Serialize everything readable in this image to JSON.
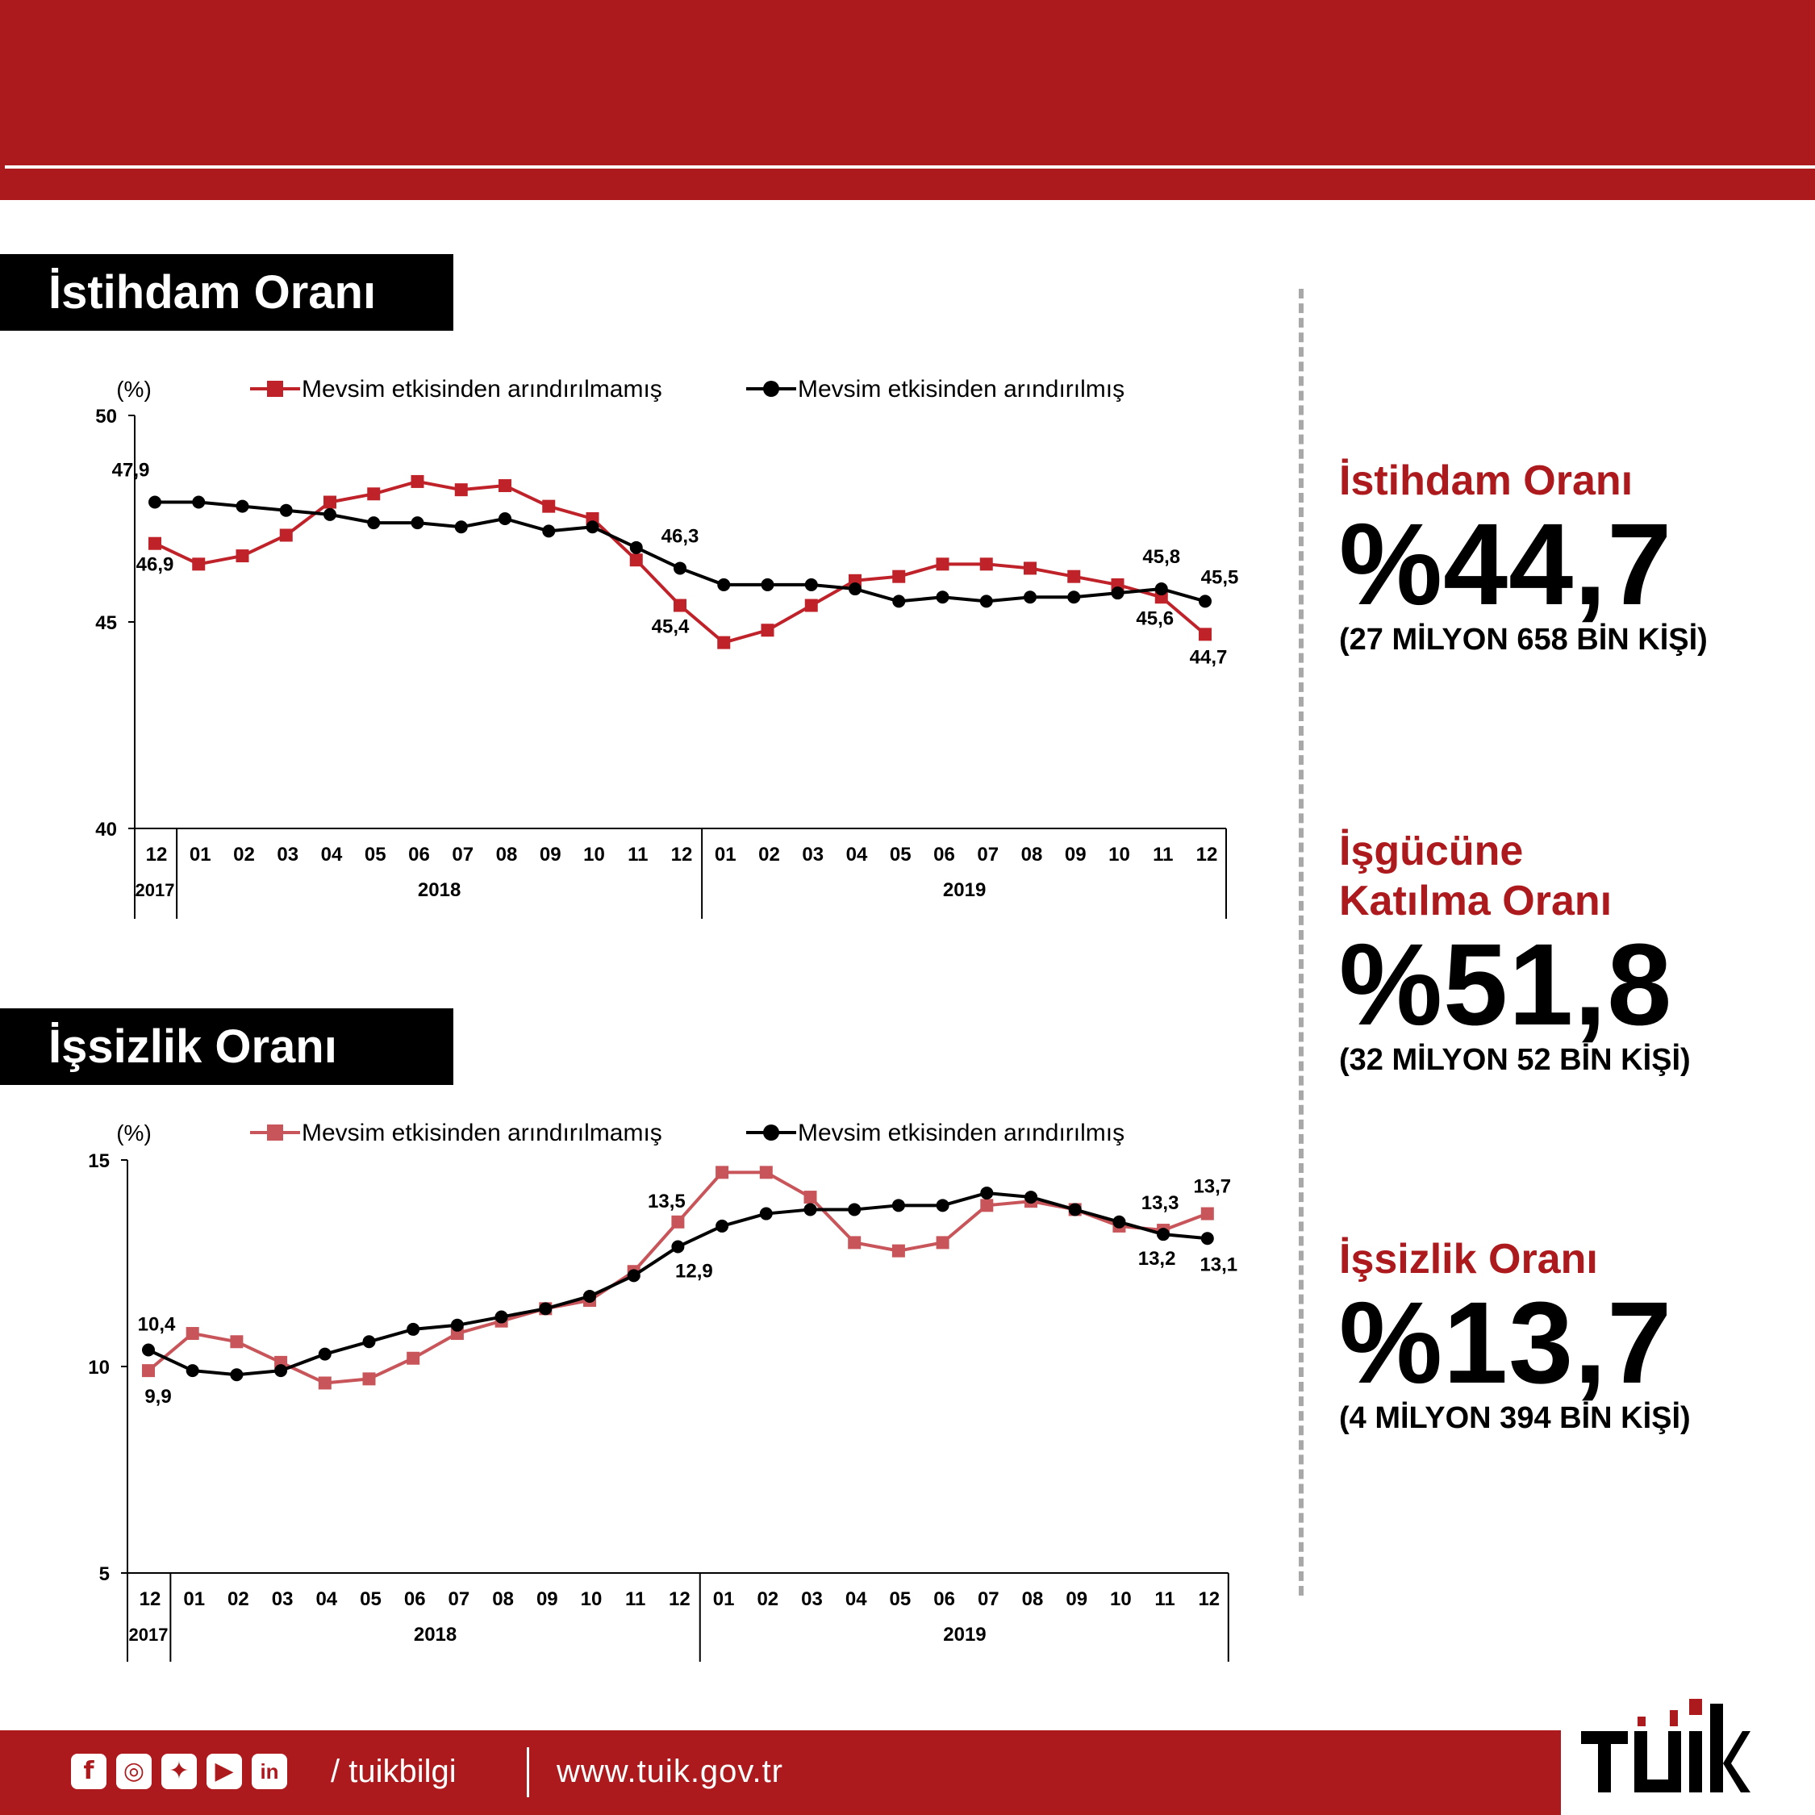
{
  "sections": {
    "employment_label": "İstihdam Oranı",
    "unemployment_label": "İşsizlik Oranı"
  },
  "stats": [
    {
      "title_lines": [
        "İstihdam Oranı"
      ],
      "value": "%44,7",
      "sub": "(27 MİLYON 658 BİN KİŞİ)"
    },
    {
      "title_lines": [
        "İşgücüne",
        "Katılma Oranı"
      ],
      "value": "%51,8",
      "sub": "(32 MİLYON 52 BİN KİŞİ)"
    },
    {
      "title_lines": [
        "İşsizlik Oranı"
      ],
      "value": "%13,7",
      "sub": "(4 MİLYON 394 BİN KİŞİ)"
    }
  ],
  "footer": {
    "social_icons": [
      "facebook-icon",
      "instagram-icon",
      "twitter-icon",
      "youtube-icon",
      "linkedin-icon"
    ],
    "handle": "/ tuikbilgi",
    "website": "www.tuik.gov.tr",
    "logo_text": "TÜİK"
  },
  "colors": {
    "brand_red": "#ac1a1d",
    "series_raw": "#c0222a",
    "series_raw_light": "#c8555a",
    "series_sa": "#000000"
  },
  "chart_data": [
    {
      "type": "line",
      "unit_label": "(%)",
      "ylim": [
        40,
        50
      ],
      "yticks": [
        "40",
        "45",
        "50"
      ],
      "x": [
        "12",
        "01",
        "02",
        "03",
        "04",
        "05",
        "06",
        "07",
        "08",
        "09",
        "10",
        "11",
        "12",
        "01",
        "02",
        "03",
        "04",
        "05",
        "06",
        "07",
        "08",
        "09",
        "10",
        "11",
        "12"
      ],
      "year_groups": [
        {
          "label": "2017",
          "count": 1
        },
        {
          "label": "2018",
          "count": 12
        },
        {
          "label": "2019",
          "count": 12
        }
      ],
      "grid": false,
      "legend_position": "top",
      "series": [
        {
          "name": "Mevsim etkisinden arındırılmamış",
          "marker": "square",
          "values": [
            46.9,
            46.4,
            46.6,
            47.1,
            47.9,
            48.1,
            48.4,
            48.2,
            48.3,
            47.8,
            47.5,
            46.5,
            45.4,
            44.5,
            44.8,
            45.4,
            46.0,
            46.1,
            46.4,
            46.4,
            46.3,
            46.1,
            45.9,
            45.6,
            44.7
          ],
          "labels": [
            {
              "index": 0,
              "text": "46,9"
            },
            {
              "index": 12,
              "text": "45,4"
            },
            {
              "index": 23,
              "text": "45,6"
            },
            {
              "index": 24,
              "text": "44,7"
            }
          ]
        },
        {
          "name": "Mevsim etkisinden arındırılmış",
          "marker": "circle",
          "values": [
            47.9,
            47.9,
            47.8,
            47.7,
            47.6,
            47.4,
            47.4,
            47.3,
            47.5,
            47.2,
            47.3,
            46.8,
            46.3,
            45.9,
            45.9,
            45.9,
            45.8,
            45.5,
            45.6,
            45.5,
            45.6,
            45.6,
            45.7,
            45.8,
            45.5
          ],
          "labels": [
            {
              "index": 0,
              "text": "47,9"
            },
            {
              "index": 12,
              "text": "46,3"
            },
            {
              "index": 23,
              "text": "45,8"
            },
            {
              "index": 24,
              "text": "45,5"
            }
          ]
        }
      ]
    },
    {
      "type": "line",
      "unit_label": "(%)",
      "ylim": [
        5,
        15
      ],
      "yticks": [
        "5",
        "10",
        "15"
      ],
      "x": [
        "12",
        "01",
        "02",
        "03",
        "04",
        "05",
        "06",
        "07",
        "08",
        "09",
        "10",
        "11",
        "12",
        "01",
        "02",
        "03",
        "04",
        "05",
        "06",
        "07",
        "08",
        "09",
        "10",
        "11",
        "12"
      ],
      "year_groups": [
        {
          "label": "2017",
          "count": 1
        },
        {
          "label": "2018",
          "count": 12
        },
        {
          "label": "2019",
          "count": 12
        }
      ],
      "grid": false,
      "legend_position": "top",
      "series": [
        {
          "name": "Mevsim etkisinden arındırılmamış",
          "marker": "square",
          "values": [
            9.9,
            10.8,
            10.6,
            10.1,
            9.6,
            9.7,
            10.2,
            10.8,
            11.1,
            11.4,
            11.6,
            12.3,
            13.5,
            14.7,
            14.7,
            14.1,
            13.0,
            12.8,
            13.0,
            13.9,
            14.0,
            13.8,
            13.4,
            13.3,
            13.7
          ],
          "labels": [
            {
              "index": 0,
              "text": "9,9"
            },
            {
              "index": 12,
              "text": "13,5"
            },
            {
              "index": 23,
              "text": "13,3"
            },
            {
              "index": 24,
              "text": "13,7"
            }
          ]
        },
        {
          "name": "Mevsim etkisinden arındırılmış",
          "marker": "circle",
          "values": [
            10.4,
            9.9,
            9.8,
            9.9,
            10.3,
            10.6,
            10.9,
            11.0,
            11.2,
            11.4,
            11.7,
            12.2,
            12.9,
            13.4,
            13.7,
            13.8,
            13.8,
            13.9,
            13.9,
            14.2,
            14.1,
            13.8,
            13.5,
            13.2,
            13.1
          ],
          "labels": [
            {
              "index": 0,
              "text": "10,4"
            },
            {
              "index": 12,
              "text": "12,9"
            },
            {
              "index": 23,
              "text": "13,2"
            },
            {
              "index": 24,
              "text": "13,1"
            }
          ]
        }
      ]
    }
  ]
}
